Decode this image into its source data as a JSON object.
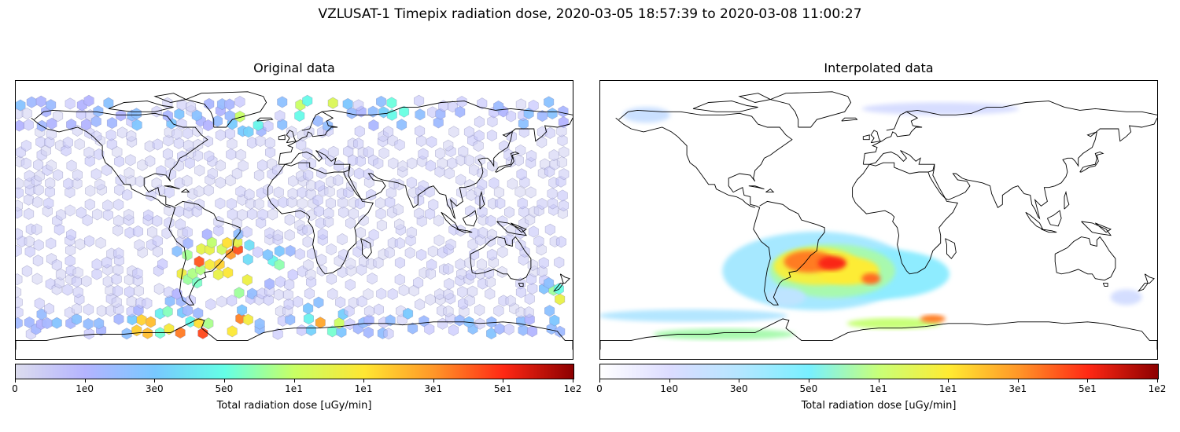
{
  "figure": {
    "suptitle": "VZLUSAT-1 Timepix radiation dose, 2020-03-05 18:57:39 to 2020-03-08 11:00:27"
  },
  "chart_data": [
    {
      "type": "heatmap",
      "title": "Original data",
      "description_kind": "hexbin scatter on world map",
      "colorbar": {
        "label": "Total radiation dose [uGy/min]",
        "ticks": [
          "0",
          "1e0",
          "3e0",
          "5e0",
          "1e1",
          "1e1",
          "3e1",
          "5e1",
          "1e2"
        ],
        "colormap": [
          "#dcdcee",
          "#b4b4ff",
          "#78c8ff",
          "#64ffe6",
          "#c8ff64",
          "#ffe632",
          "#ff9628",
          "#ff2814",
          "#8c0000"
        ]
      },
      "hot_points": [
        {
          "lon": -70,
          "lat": -30,
          "level": 0.85
        },
        {
          "lon": -60,
          "lat": -25,
          "level": 1.0
        },
        {
          "lon": -50,
          "lat": -30,
          "level": 0.9
        },
        {
          "lon": -45,
          "lat": -26,
          "level": 0.8
        },
        {
          "lon": -40,
          "lat": -32,
          "level": 0.7
        },
        {
          "lon": -35,
          "lat": -40,
          "level": 0.85
        },
        {
          "lon": -20,
          "lat": -32,
          "level": 0.6
        },
        {
          "lon": -10,
          "lat": -28,
          "level": 0.55
        },
        {
          "lon": -65,
          "lat": -40,
          "level": 0.6
        },
        {
          "lon": -80,
          "lat": -60,
          "level": 0.5
        },
        {
          "lon": -95,
          "lat": -70,
          "level": 1.0
        },
        {
          "lon": -75,
          "lat": -72,
          "level": 1.0
        },
        {
          "lon": -60,
          "lat": -72,
          "level": 1.0
        },
        {
          "lon": -35,
          "lat": -68,
          "level": 0.95
        },
        {
          "lon": -40,
          "lat": -20,
          "level": 0.95
        },
        {
          "lon": -50,
          "lat": -20,
          "level": 0.75
        },
        {
          "lon": 20,
          "lat": -66,
          "level": 1.0
        },
        {
          "lon": 15,
          "lat": -63,
          "level": 0.6
        },
        {
          "lon": -30,
          "lat": 65,
          "level": 0.65
        },
        {
          "lon": 5,
          "lat": 72,
          "level": 0.55
        },
        {
          "lon": 25,
          "lat": 71,
          "level": 0.7
        },
        {
          "lon": 65,
          "lat": 73,
          "level": 0.6
        },
        {
          "lon": 170,
          "lat": -50,
          "level": 0.7
        }
      ]
    },
    {
      "type": "heatmap",
      "title": "Interpolated data",
      "description_kind": "interpolated field on world map",
      "colorbar": {
        "label": "Total radiation dose [uGy/min]",
        "ticks": [
          "0",
          "1e0",
          "3e0",
          "5e0",
          "1e1",
          "1e1",
          "3e1",
          "5e1",
          "1e2"
        ],
        "colormap": [
          "#ffffff",
          "#dcdcff",
          "#b4e6ff",
          "#78f0ff",
          "#c8ff78",
          "#ffeb32",
          "#ff9628",
          "#ff2814",
          "#8c0000"
        ]
      }
    }
  ]
}
